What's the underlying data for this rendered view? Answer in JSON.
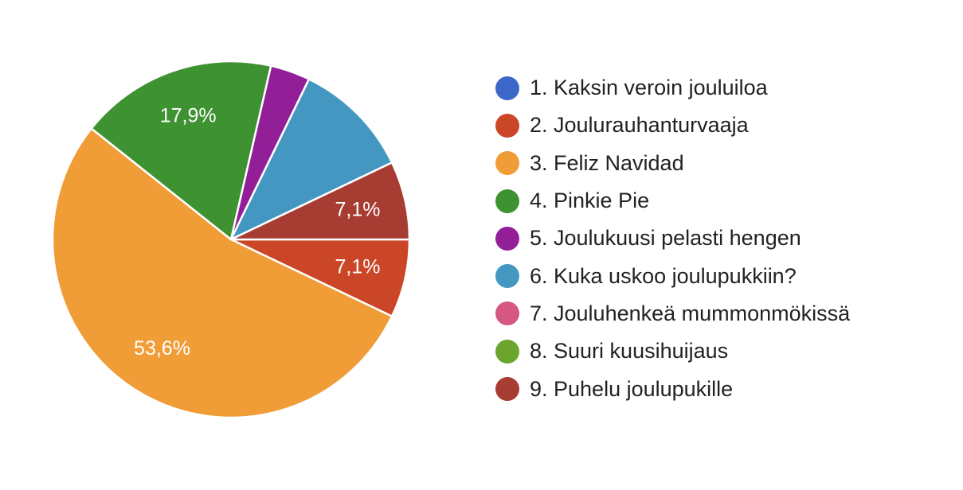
{
  "chart_data": {
    "type": "pie",
    "categories": [
      "1. Kaksin veroin jouluiloa",
      "2. Joulurauhanturvaaja",
      "3. Feliz Navidad",
      "4. Pinkie Pie",
      "5. Joulukuusi pelasti hengen",
      "6. Kuka uskoo joulupukkiin?",
      "7. Jouluhenkeä mummonmökissä",
      "8. Suuri kuusihuijaus",
      "9. Puhelu joulupukille"
    ],
    "values": [
      0,
      7.1,
      53.6,
      17.9,
      3.6,
      10.7,
      0,
      0,
      7.1
    ],
    "data_labels": [
      "",
      "7,1%",
      "53,6%",
      "17,9%",
      "",
      "",
      "",
      "",
      "7,1%"
    ],
    "colors": [
      "#3c67c8",
      "#cb4626",
      "#f09d38",
      "#3f9232",
      "#931f98",
      "#4497c1",
      "#d55782",
      "#6ba52d",
      "#a73c33"
    ],
    "start": "right, clockwise",
    "legend_position": "right",
    "title": ""
  }
}
